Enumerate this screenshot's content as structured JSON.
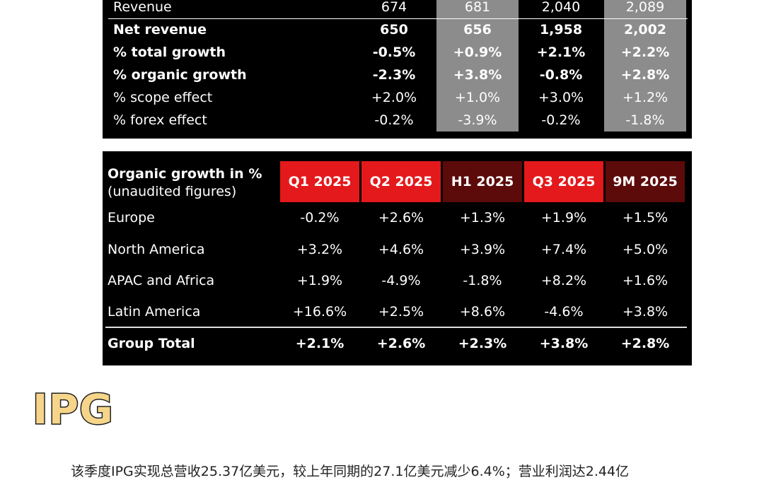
{
  "table1": {
    "rows": [
      [
        "Revenue",
        "674",
        "681",
        "2,040",
        "2,089"
      ],
      [
        "Net revenue",
        "650",
        "656",
        "1,958",
        "2,002"
      ],
      [
        "% total growth",
        "-0.5%",
        "+0.9%",
        "+2.1%",
        "+2.2%"
      ],
      [
        "% organic growth",
        "-2.3%",
        "+3.8%",
        "-0.8%",
        "+2.8%"
      ],
      [
        "% scope effect",
        "+2.0%",
        "+1.0%",
        "+3.0%",
        "+1.2%"
      ],
      [
        "% forex effect",
        "-0.2%",
        "-3.9%",
        "-0.2%",
        "-1.8%"
      ]
    ]
  },
  "table2": {
    "corner": [
      "Organic growth in %",
      "(unaudited figures)"
    ],
    "headers": [
      "Q1 2025",
      "Q2 2025",
      "H1 2025",
      "Q3 2025",
      "9M 2025"
    ],
    "rows": [
      [
        "Europe",
        "-0.2%",
        "+2.6%",
        "+1.3%",
        "+1.9%",
        "+1.5%"
      ],
      [
        "North America",
        "+3.2%",
        "+4.6%",
        "+3.9%",
        "+7.4%",
        "+5.0%"
      ],
      [
        "APAC and Africa",
        "+1.9%",
        "-4.9%",
        "-1.8%",
        "+8.2%",
        "+1.6%"
      ],
      [
        "Latin America",
        "+16.6%",
        "+2.5%",
        "+8.6%",
        "-4.6%",
        "+3.8%"
      ],
      [
        "Group Total",
        "+2.1%",
        "+2.6%",
        "+2.3%",
        "+3.8%",
        "+2.8%"
      ]
    ]
  },
  "heading": "IPG",
  "paragraph": "该季度IPG实现总营收25.37亿美元，较上年同期的27.1亿美元减少6.4%；营业利润达2.44亿"
}
